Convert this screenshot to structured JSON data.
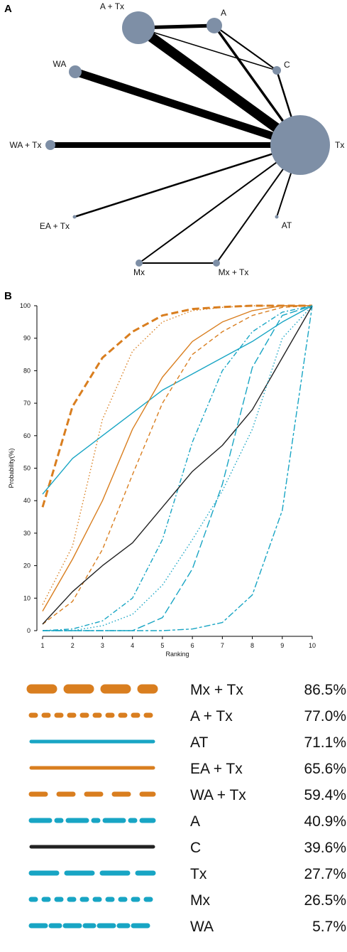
{
  "panel_a": {
    "letter": "A",
    "nodes": [
      {
        "id": "A + Tx",
        "label": "A + Tx"
      },
      {
        "id": "A",
        "label": "A"
      },
      {
        "id": "C",
        "label": "C"
      },
      {
        "id": "WA",
        "label": "WA"
      },
      {
        "id": "WA + Tx",
        "label": "WA + Tx"
      },
      {
        "id": "Tx",
        "label": "Tx"
      },
      {
        "id": "EA + Tx",
        "label": "EA + Tx"
      },
      {
        "id": "AT",
        "label": "AT"
      },
      {
        "id": "Mx",
        "label": "Mx"
      },
      {
        "id": "Mx + Tx",
        "label": "Mx + Tx"
      }
    ],
    "edges": [
      {
        "from": "A + Tx",
        "to": "A",
        "strength": 5
      },
      {
        "from": "A + Tx",
        "to": "Tx",
        "strength": 14
      },
      {
        "from": "A + Tx",
        "to": "C",
        "strength": 1.5
      },
      {
        "from": "A",
        "to": "Tx",
        "strength": 3.5
      },
      {
        "from": "A",
        "to": "C",
        "strength": 2
      },
      {
        "from": "C",
        "to": "Tx",
        "strength": 2.5
      },
      {
        "from": "WA",
        "to": "Tx",
        "strength": 11
      },
      {
        "from": "WA + Tx",
        "to": "Tx",
        "strength": 8
      },
      {
        "from": "EA + Tx",
        "to": "Tx",
        "strength": 2.5
      },
      {
        "from": "AT",
        "to": "Tx",
        "strength": 2
      },
      {
        "from": "Mx",
        "to": "Tx",
        "strength": 2
      },
      {
        "from": "Mx + Tx",
        "to": "Tx",
        "strength": 2
      },
      {
        "from": "Mx",
        "to": "Mx + Tx",
        "strength": 2
      }
    ]
  },
  "panel_b_letter": "B",
  "chart_data": {
    "type": "line",
    "title": "",
    "xlabel": "Ranking",
    "ylabel": "Probability(%)",
    "x": [
      1,
      2,
      3,
      4,
      5,
      6,
      7,
      8,
      9,
      10
    ],
    "xlim": [
      1,
      10
    ],
    "ylim": [
      0,
      100
    ],
    "yticks": [
      0,
      10,
      20,
      30,
      40,
      50,
      60,
      70,
      80,
      90,
      100
    ],
    "series": [
      {
        "name": "Mx + Tx",
        "sucra": "86.5%",
        "color": "#D97E1F",
        "dash": "longdash-thick",
        "values": [
          38,
          69,
          84,
          92,
          97,
          99,
          99.6,
          100,
          100,
          100
        ]
      },
      {
        "name": "A + Tx",
        "sucra": "77.0%",
        "color": "#D97E1F",
        "dash": "dotted",
        "values": [
          8,
          26,
          65,
          86,
          95,
          98.5,
          99.5,
          100,
          100,
          100
        ]
      },
      {
        "name": "AT",
        "sucra": "71.1%",
        "color": "#18A5C4",
        "dash": "solid",
        "values": [
          42,
          53,
          60,
          67,
          74,
          79,
          84,
          89,
          95,
          100
        ]
      },
      {
        "name": "EA + Tx",
        "sucra": "65.6%",
        "color": "#D97E1F",
        "dash": "solid",
        "values": [
          6,
          22,
          40,
          62,
          78,
          89,
          95,
          98.5,
          100,
          100
        ]
      },
      {
        "name": "WA + Tx",
        "sucra": "59.4%",
        "color": "#D97E1F",
        "dash": "dashed",
        "values": [
          2,
          9,
          25,
          48,
          70,
          85,
          92,
          97,
          99.5,
          100
        ]
      },
      {
        "name": "A",
        "sucra": "40.9%",
        "color": "#18A5C4",
        "dash": "dashdot",
        "values": [
          0,
          0.5,
          3,
          10,
          28,
          58,
          80,
          92,
          98,
          100
        ]
      },
      {
        "name": "C",
        "sucra": "39.6%",
        "color": "#222222",
        "dash": "solid",
        "values": [
          2,
          12,
          20,
          27,
          38,
          49,
          57,
          68,
          84,
          100
        ]
      },
      {
        "name": "Tx",
        "sucra": "27.7%",
        "color": "#18A5C4",
        "dash": "longdash",
        "values": [
          0,
          0,
          0,
          0,
          4,
          19,
          45,
          81,
          97,
          100
        ]
      },
      {
        "name": "Mx",
        "sucra": "26.5%",
        "color": "#18A5C4",
        "dash": "dotted",
        "values": [
          0,
          0,
          1.5,
          5,
          14,
          28,
          43,
          62,
          90,
          100
        ]
      },
      {
        "name": "WA",
        "sucra": "5.7%",
        "color": "#18A5C4",
        "dash": "twodash",
        "values": [
          0,
          0,
          0,
          0,
          0,
          0.5,
          2.5,
          11,
          37,
          100
        ]
      }
    ]
  }
}
